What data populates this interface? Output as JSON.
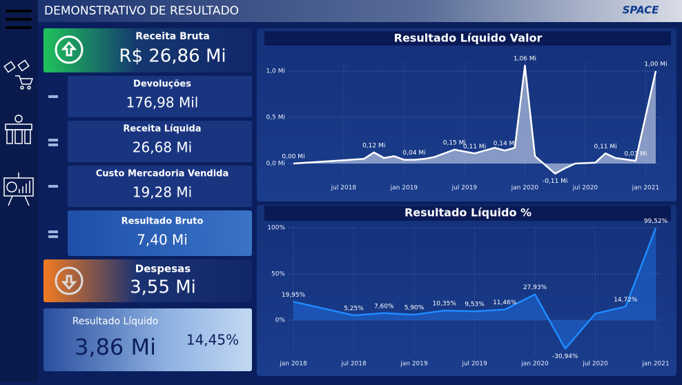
{
  "header": {
    "title": "DEMONSTRATIVO DE RESULTADO",
    "logo": "SPACE"
  },
  "kpis": [
    {
      "label": "Receita Bruta",
      "value": "R$ 26,86 Mi"
    },
    {
      "label": "Devoluções",
      "value": "176,98 Mil"
    },
    {
      "label": "Receita Líquida",
      "value": "26,68 Mi"
    },
    {
      "label": "Custo Mercadoria Vendida",
      "value": "19,28 Mi"
    },
    {
      "label": "Resultado Bruto",
      "value": "7,40 Mi"
    },
    {
      "label": "Despesas",
      "value": "3,55 Mi"
    },
    {
      "label": "Resultado Líquido",
      "value": "3,86 Mi",
      "percent": "14,45%"
    }
  ],
  "charts": [
    {
      "type": "area",
      "title": "Resultado Líquido Valor",
      "color": "#ffffff",
      "fill": "#b7c3e0",
      "x": [
        "2018-02",
        "2018-09",
        "2018-10",
        "2018-11",
        "2018-12",
        "2019-01",
        "2019-02",
        "2019-03",
        "2019-04",
        "2019-06",
        "2019-08",
        "2019-10",
        "2019-11",
        "2019-12",
        "2020-01",
        "2020-02",
        "2020-04",
        "2020-05",
        "2020-06",
        "2020-08",
        "2020-09",
        "2020-10",
        "2020-12",
        "2021-02"
      ],
      "values": [
        0,
        0.05,
        0.12,
        0.06,
        0.08,
        0.04,
        0.04,
        0.05,
        0.07,
        0.15,
        0.11,
        0.17,
        0.14,
        0.17,
        1.06,
        0.08,
        -0.11,
        -0.05,
        0,
        0.01,
        0.11,
        0.06,
        0.03,
        1.0
      ],
      "value_labels": [
        "0,00 Mi",
        null,
        "0,12 Mi",
        null,
        null,
        null,
        "0,04 Mi",
        null,
        null,
        "0,15 Mi",
        "0,11 Mi",
        null,
        "0,14 Mi",
        null,
        "1,06 Mi",
        null,
        "-0,11 Mi",
        null,
        null,
        null,
        "0,11 Mi",
        null,
        "0,03 Mi",
        "1,00 Mi"
      ],
      "xlim": [
        "2018-02",
        "2021-02"
      ],
      "xticks": [
        {
          "value": "2018-07",
          "label": "jul 2018"
        },
        {
          "value": "2019-01",
          "label": "jan 2019"
        },
        {
          "value": "2019-07",
          "label": "jul 2019"
        },
        {
          "value": "2020-01",
          "label": "jan 2020"
        },
        {
          "value": "2020-07",
          "label": "jul 2020"
        },
        {
          "value": "2021-01",
          "label": "jan 2021"
        }
      ],
      "ylim": [
        -0.15,
        1.1
      ],
      "yticks": [
        {
          "value": 0,
          "label": "0,0 Mi"
        },
        {
          "value": 0.5,
          "label": "0,5 Mi"
        },
        {
          "value": 1,
          "label": "1,0 Mi"
        }
      ],
      "grid": true
    },
    {
      "type": "area",
      "title": "Resultado Líquido %",
      "color": "#1f8bff",
      "fill": "#1d5fc9",
      "x": [
        "2018-01",
        "2018-07",
        "2018-10",
        "2019-01",
        "2019-04",
        "2019-07",
        "2019-10",
        "2020-01",
        "2020-04",
        "2020-07",
        "2020-10",
        "2021-01"
      ],
      "values": [
        19.95,
        5.25,
        7.6,
        5.9,
        10.35,
        9.53,
        11.46,
        27.93,
        -30.94,
        7,
        14.72,
        99.52
      ],
      "value_labels": [
        "19,95%",
        "5,25%",
        "7,60%",
        "5,90%",
        "10,35%",
        "9,53%",
        "11,46%",
        "27,93%",
        "-30,94%",
        null,
        "14,72%",
        "99,52%"
      ],
      "xlim": [
        "2018-01",
        "2021-01"
      ],
      "xticks": [
        {
          "value": "2018-01",
          "label": "jan 2018"
        },
        {
          "value": "2018-07",
          "label": "jul 2018"
        },
        {
          "value": "2019-01",
          "label": "jan 2019"
        },
        {
          "value": "2019-07",
          "label": "jul 2019"
        },
        {
          "value": "2020-01",
          "label": "jan 2020"
        },
        {
          "value": "2020-07",
          "label": "jul 2020"
        },
        {
          "value": "2021-01",
          "label": "jan 2021"
        }
      ],
      "ylim": [
        -40,
        100
      ],
      "yticks": [
        {
          "value": 0,
          "label": "0%"
        },
        {
          "value": 50,
          "label": "50%"
        },
        {
          "value": 100,
          "label": "100%"
        }
      ],
      "grid": true
    }
  ]
}
